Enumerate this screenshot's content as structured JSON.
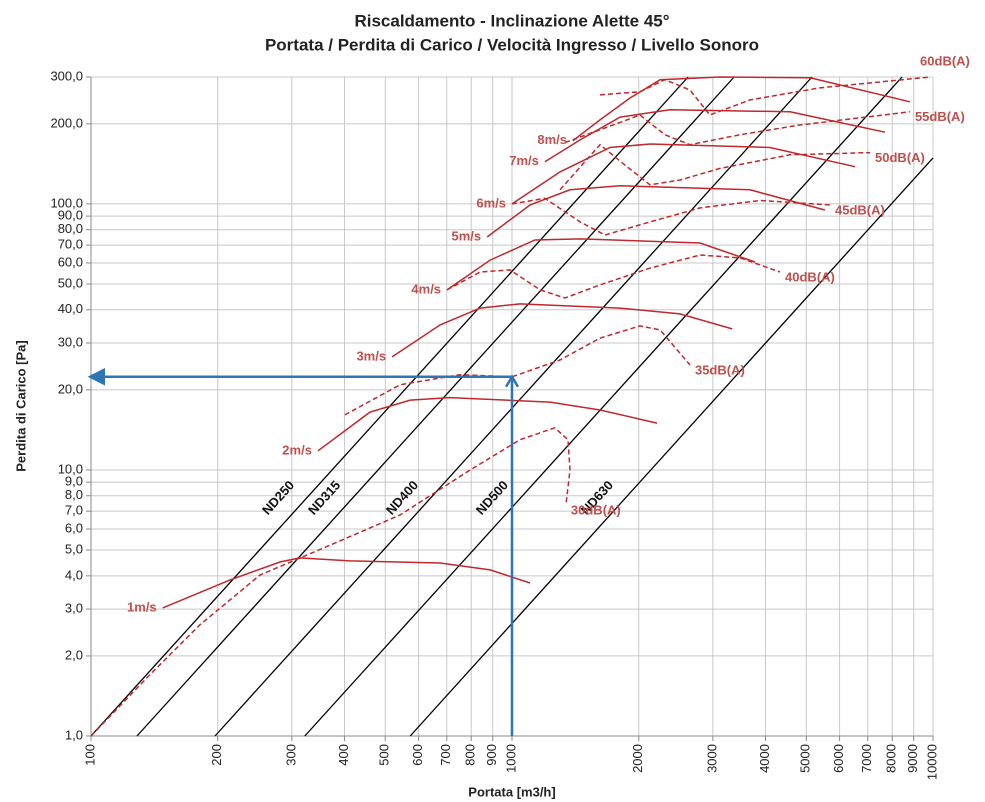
{
  "chart_data": {
    "type": "line",
    "title": "Riscaldamento - Inclinazione Alette 45°",
    "subtitle": "Portata / Perdita di Carico / Velocità Ingresso / Livello Sonoro",
    "x_label": "Portata [m3/h]",
    "y_label": "Perdita di Carico [Pa]",
    "log_x": true,
    "log_y": true,
    "grid": true,
    "xlim": [
      100,
      10000
    ],
    "ylim": [
      1,
      300
    ],
    "xticks": [
      100,
      200,
      300,
      400,
      500,
      600,
      700,
      800,
      900,
      1000,
      2000,
      3000,
      4000,
      5000,
      6000,
      7000,
      8000,
      9000,
      10000
    ],
    "yticks": [
      {
        "value": 1,
        "label": "1,0"
      },
      {
        "value": 2,
        "label": "2,0"
      },
      {
        "value": 3,
        "label": "3,0"
      },
      {
        "value": 4,
        "label": "4,0"
      },
      {
        "value": 5,
        "label": "5,0"
      },
      {
        "value": 6,
        "label": "6,0"
      },
      {
        "value": 7,
        "label": "7,0"
      },
      {
        "value": 8,
        "label": "8,0"
      },
      {
        "value": 9,
        "label": "9,0"
      },
      {
        "value": 10,
        "label": "10,0"
      },
      {
        "value": 20,
        "label": "20,0"
      },
      {
        "value": 30,
        "label": "30,0"
      },
      {
        "value": 40,
        "label": "40,0"
      },
      {
        "value": 50,
        "label": "50,0"
      },
      {
        "value": 60,
        "label": "60,0"
      },
      {
        "value": 70,
        "label": "70,0"
      },
      {
        "value": 80,
        "label": "80,0"
      },
      {
        "value": 90,
        "label": "90,0"
      },
      {
        "value": 100,
        "label": "100,0"
      },
      {
        "value": 200,
        "label": "200,0"
      },
      {
        "value": 300,
        "label": "300,0"
      }
    ],
    "series": [
      {
        "name": "ND250",
        "group": "diameter",
        "color": "#000000",
        "style": "solid",
        "x": [
          100,
          2620
        ],
        "values": [
          1,
          300
        ]
      },
      {
        "name": "ND315",
        "group": "diameter",
        "color": "#000000",
        "style": "solid",
        "x": [
          128.6,
          3370
        ],
        "values": [
          1,
          300
        ]
      },
      {
        "name": "ND400",
        "group": "diameter",
        "color": "#000000",
        "style": "solid",
        "x": [
          197,
          5160
        ],
        "values": [
          1,
          300
        ]
      },
      {
        "name": "ND500",
        "group": "diameter",
        "color": "#000000",
        "style": "solid",
        "x": [
          322,
          8440
        ],
        "values": [
          1,
          300
        ]
      },
      {
        "name": "ND630",
        "group": "diameter",
        "color": "#000000",
        "style": "solid",
        "x": [
          573,
          10000
        ],
        "values": [
          1,
          149
        ]
      },
      {
        "name": "1m/s",
        "group": "velocity",
        "color": "#c0282d",
        "style": "solid",
        "x": [
          148,
          214,
          281,
          313,
          412,
          675,
          887,
          1104
        ],
        "values": [
          3.03,
          3.86,
          4.51,
          4.67,
          4.55,
          4.47,
          4.21,
          3.76
        ]
      },
      {
        "name": "2m/s",
        "group": "velocity",
        "color": "#c0282d",
        "style": "solid",
        "x": [
          346,
          460,
          573,
          712,
          1231,
          1618,
          2210
        ],
        "values": [
          11.8,
          16.5,
          18.3,
          18.7,
          18.0,
          16.8,
          15.0
        ]
      },
      {
        "name": "3m/s",
        "group": "velocity",
        "color": "#c0282d",
        "style": "solid",
        "x": [
          519,
          675,
          840,
          1045,
          1806,
          2507,
          3334
        ],
        "values": [
          26.6,
          35.1,
          40.6,
          42.1,
          40.6,
          38.6,
          33.9
        ]
      },
      {
        "name": "4m/s",
        "group": "velocity",
        "color": "#c0282d",
        "style": "solid",
        "x": [
          701,
          887,
          1134,
          1451,
          2797,
          3777
        ],
        "values": [
          47.5,
          61.5,
          73.2,
          73.9,
          71.3,
          60.5
        ]
      },
      {
        "name": "5m/s",
        "group": "velocity",
        "color": "#c0282d",
        "style": "solid",
        "x": [
          873,
          1104,
          1373,
          1806,
          3675,
          5537
        ],
        "values": [
          75.2,
          99.2,
          113,
          117,
          113,
          94.9
        ]
      },
      {
        "name": "6m/s",
        "group": "velocity",
        "color": "#c0282d",
        "style": "solid",
        "x": [
          1000,
          1300,
          1709,
          2127,
          4101,
          6531
        ],
        "values": [
          100,
          132,
          163,
          168,
          163,
          138
        ]
      },
      {
        "name": "7m/s",
        "group": "velocity",
        "color": "#c0282d",
        "style": "solid",
        "x": [
          1197,
          1451,
          1806,
          2373,
          4575,
          7691
        ],
        "values": [
          144,
          174,
          212,
          226,
          222,
          186
        ]
      },
      {
        "name": "8m/s",
        "group": "velocity",
        "color": "#c0282d",
        "style": "solid",
        "x": [
          1396,
          1618,
          1905,
          2248,
          3119,
          5105,
          8815
        ],
        "values": [
          173,
          207,
          250,
          293,
          300,
          298,
          242
        ]
      },
      {
        "name": "30dB(A)",
        "group": "sound",
        "color": "#c0282d",
        "style": "dashed",
        "x": [
          100,
          138,
          181,
          252,
          370,
          542,
          795,
          1045,
          1264,
          1358,
          1373,
          1343
        ],
        "values": [
          1.0,
          1.7,
          2.61,
          4.03,
          5.22,
          6.77,
          10,
          13.0,
          14.4,
          13.0,
          10,
          7.38
        ]
      },
      {
        "name": "35dB(A)",
        "group": "sound",
        "color": "#c0282d",
        "style": "dashed",
        "x": [
          401,
          542,
          752,
          1000,
          1300,
          1618,
          2014,
          2248,
          2647
        ],
        "values": [
          16.1,
          20.9,
          22.8,
          22.4,
          25.9,
          31.3,
          34.8,
          33.6,
          24.8
        ]
      },
      {
        "name": "40dB(A)",
        "group": "sound",
        "color": "#c0282d",
        "style": "dashed",
        "x": [
          701,
          840,
          989,
          1166,
          1336,
          1618,
          2127,
          2797,
          3483,
          4332
        ],
        "values": [
          47.5,
          55.5,
          56.5,
          47.5,
          44.3,
          49.6,
          57.4,
          64.3,
          62.7,
          55.5
        ]
      },
      {
        "name": "45dB(A)",
        "group": "sound",
        "color": "#c0282d",
        "style": "dashed",
        "x": [
          1000,
          1197,
          1451,
          1663,
          2127,
          2797,
          3882,
          5693
        ],
        "values": [
          100,
          105,
          85.6,
          76.4,
          85.6,
          96.6,
          103,
          99.2
        ]
      },
      {
        "name": "50dB(A)",
        "group": "sound",
        "color": "#c0282d",
        "style": "dashed",
        "x": [
          1300,
          1618,
          1855,
          2127,
          2507,
          3119,
          4575,
          7087
        ],
        "values": [
          113,
          167,
          140,
          118,
          123,
          136,
          153,
          156
        ]
      },
      {
        "name": "55dB(A)",
        "group": "sound",
        "color": "#c0282d",
        "style": "dashed",
        "x": [
          1336,
          1618,
          2014,
          2307,
          2647,
          3483,
          4831,
          8815
        ],
        "values": [
          170,
          190,
          216,
          182,
          167,
          182,
          198,
          222
        ]
      },
      {
        "name": "60dB(A)",
        "group": "sound",
        "color": "#c0282d",
        "style": "dashed",
        "x": [
          1618,
          2014,
          2307,
          2647,
          2952,
          3675,
          5378,
          9840
        ],
        "values": [
          257,
          264,
          293,
          268,
          216,
          246,
          273,
          300
        ]
      }
    ],
    "arrow": {
      "color": "#2e75b6",
      "x": [
        1000,
        1000,
        100
      ],
      "values": [
        1,
        22.4,
        22.4
      ]
    }
  }
}
